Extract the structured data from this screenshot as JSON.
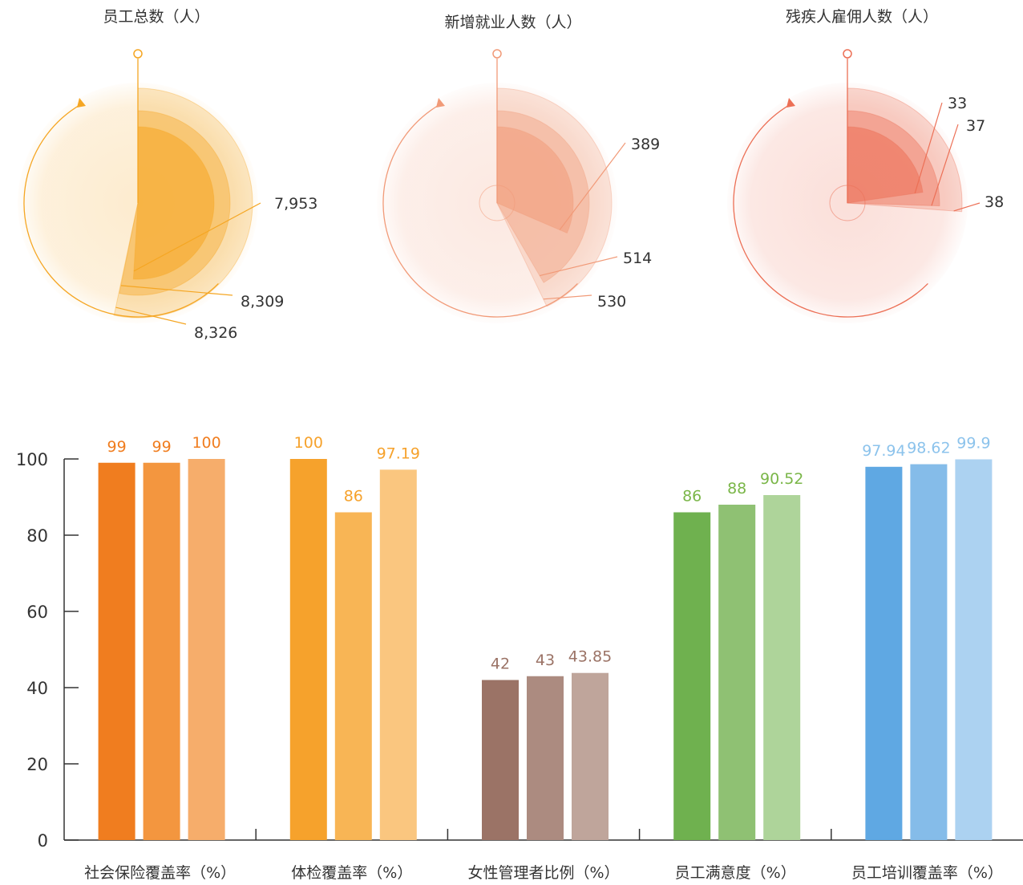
{
  "chart_data": [
    {
      "type": "radial",
      "title": "员工总数（人）",
      "values": [
        7953,
        8309,
        8326
      ],
      "labels": [
        "7,953",
        "8,309",
        "8,326"
      ],
      "color": "#f5a623"
    },
    {
      "type": "radial",
      "title": "新增就业人数（人）",
      "values": [
        389,
        514,
        530
      ],
      "labels": [
        "389",
        "514",
        "530"
      ],
      "color": "#f19a78"
    },
    {
      "type": "radial",
      "title": "残疾人雇佣人数（人）",
      "values": [
        33,
        37,
        38
      ],
      "labels": [
        "33",
        "37",
        "38"
      ],
      "color": "#ec6f55"
    },
    {
      "type": "bar",
      "ylim": [
        0,
        100
      ],
      "yticks": [
        "0",
        "20",
        "40",
        "60",
        "80",
        "100"
      ],
      "groups": [
        {
          "category": "社会保险覆盖率（%）",
          "values": [
            99,
            99,
            100
          ],
          "labels": [
            "99",
            "99",
            "100"
          ],
          "colors": [
            "#f07d1f",
            "#f3963f",
            "#f6ad6b"
          ],
          "label_color": "#f07d1f"
        },
        {
          "category": "体检覆盖率（%）",
          "values": [
            100,
            86,
            97.19
          ],
          "labels": [
            "100",
            "86",
            "97.19"
          ],
          "colors": [
            "#f6a22c",
            "#f8b555",
            "#fac67f"
          ],
          "label_color": "#f6a22c"
        },
        {
          "category": "女性管理者比例（%）",
          "values": [
            42,
            43,
            43.85
          ],
          "labels": [
            "42",
            "43",
            "43.85"
          ],
          "colors": [
            "#9b7366",
            "#ac8b80",
            "#bfa59b"
          ],
          "label_color": "#9b7366"
        },
        {
          "category": "员工满意度（%）",
          "values": [
            86,
            88,
            90.52
          ],
          "labels": [
            "86",
            "88",
            "90.52"
          ],
          "colors": [
            "#6fb14f",
            "#8fc173",
            "#aed49a"
          ],
          "label_color": "#7ab648"
        },
        {
          "category": "员工培训覆盖率（%）",
          "values": [
            97.94,
            98.62,
            99.9
          ],
          "labels": [
            "97.94",
            "98.62",
            "99.9"
          ],
          "colors": [
            "#5fa8e3",
            "#85bce9",
            "#acd2f1"
          ],
          "label_color": "#8cc3ec"
        }
      ]
    }
  ]
}
